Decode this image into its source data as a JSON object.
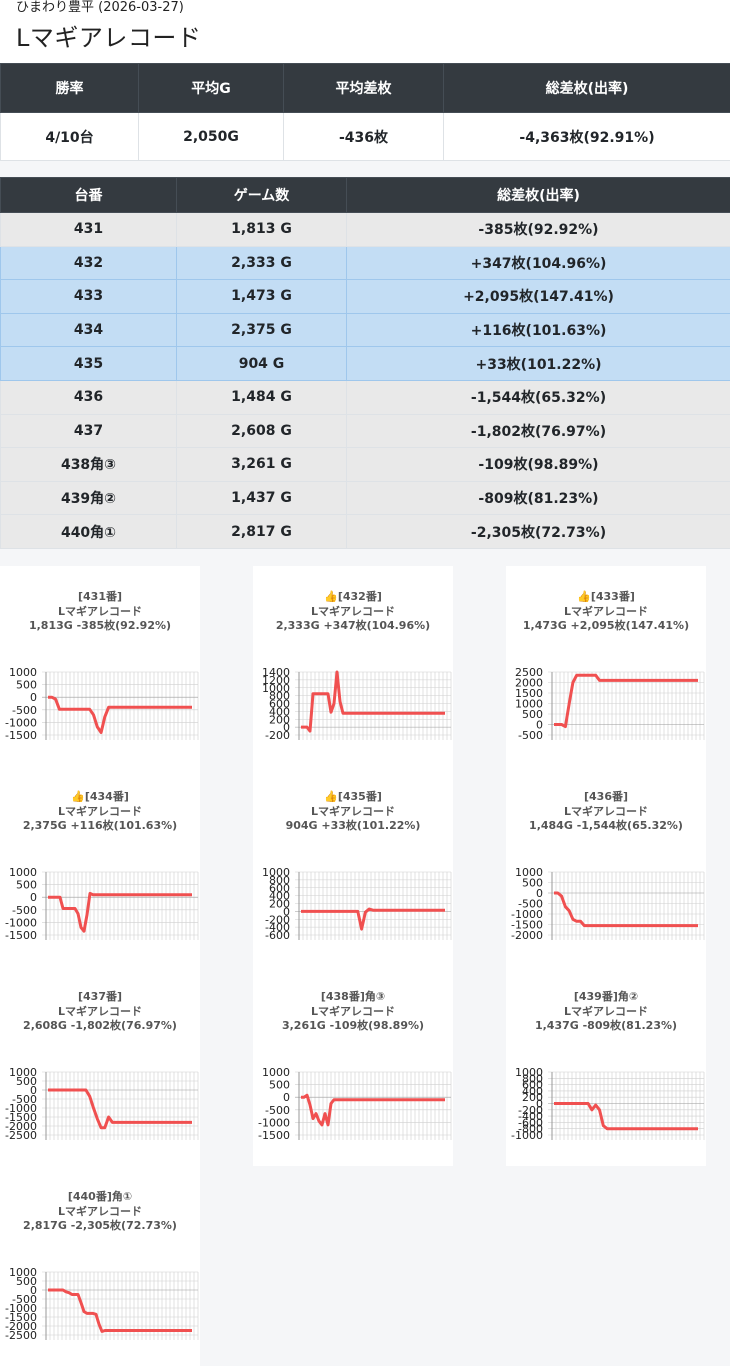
{
  "header": {
    "store_line": "ひまわり豊平 (2026-03-27)",
    "machine_title": "Lマギアレコード"
  },
  "summary": {
    "headers": [
      "勝率",
      "平均G",
      "平均差枚",
      "総差枚(出率)"
    ],
    "values": [
      "4/10台",
      "2,050G",
      "-436枚",
      "-4,363枚(92.91%)"
    ]
  },
  "units_table": {
    "headers": [
      "台番",
      "ゲーム数",
      "総差枚(出率)"
    ],
    "rows": [
      {
        "unit": "431",
        "games": "1,813 G",
        "diff": "-385枚(92.92%)",
        "win": false
      },
      {
        "unit": "432",
        "games": "2,333 G",
        "diff": "+347枚(104.96%)",
        "win": true
      },
      {
        "unit": "433",
        "games": "1,473 G",
        "diff": "+2,095枚(147.41%)",
        "win": true
      },
      {
        "unit": "434",
        "games": "2,375 G",
        "diff": "+116枚(101.63%)",
        "win": true
      },
      {
        "unit": "435",
        "games": "904 G",
        "diff": "+33枚(101.22%)",
        "win": true
      },
      {
        "unit": "436",
        "games": "1,484 G",
        "diff": "-1,544枚(65.32%)",
        "win": false
      },
      {
        "unit": "437",
        "games": "2,608 G",
        "diff": "-1,802枚(76.97%)",
        "win": false
      },
      {
        "unit": "438角③",
        "games": "3,261 G",
        "diff": "-109枚(98.89%)",
        "win": false
      },
      {
        "unit": "439角②",
        "games": "1,437 G",
        "diff": "-809枚(81.23%)",
        "win": false
      },
      {
        "unit": "440角①",
        "games": "2,817 G",
        "diff": "-2,305枚(72.73%)",
        "win": false
      }
    ]
  },
  "colors": {
    "header_bg": "#343a40",
    "win_row": "#c3ddf4",
    "lose_row": "#e9e9e9",
    "line": "#f05050",
    "grid": "#cfcfcf"
  },
  "chart_data": [
    {
      "type": "line",
      "title_line1": "[431番]",
      "title_line2": "Lマギアレコード",
      "title_line3": "1,813G -385枚(92.92%)",
      "ylim": [
        -1500,
        1000
      ],
      "yticks": [
        1000,
        500,
        0,
        -500,
        -1000,
        -1500
      ],
      "x": [
        0,
        10,
        20,
        30,
        40,
        50,
        60,
        70,
        80,
        90,
        100,
        110,
        120,
        130,
        140,
        150,
        160,
        170,
        180,
        190,
        200,
        210,
        220,
        230,
        240,
        250,
        260,
        270,
        280,
        290,
        300,
        310,
        320,
        330,
        340,
        350,
        360,
        370,
        380
      ],
      "values": [
        0,
        0,
        -80,
        -480,
        -480,
        -480,
        -480,
        -480,
        -480,
        -480,
        -480,
        -480,
        -700,
        -1180,
        -1400,
        -780,
        -400,
        -400,
        -400,
        -400,
        -400,
        -400,
        -400,
        -400,
        -400,
        -400,
        -400,
        -400,
        -400,
        -400,
        -400,
        -400,
        -400,
        -400,
        -400,
        -400,
        -400,
        -400,
        -400
      ]
    },
    {
      "type": "line",
      "title_line1": "👍[432番]",
      "title_line2": "Lマギアレコード",
      "title_line3": "2,333G +347枚(104.96%)",
      "ylim": [
        -200,
        1400
      ],
      "yticks": [
        1400,
        1200,
        1000,
        800,
        600,
        400,
        200,
        0,
        -200
      ],
      "x": [
        0,
        8,
        16,
        24,
        32,
        40,
        48,
        56,
        64,
        72,
        80,
        88,
        96,
        104,
        112,
        120,
        128,
        136,
        144,
        152,
        160,
        168,
        176,
        184,
        192,
        200,
        208,
        216,
        224,
        232,
        240,
        248,
        256,
        264,
        272,
        280,
        288,
        296,
        304,
        312,
        320,
        328,
        336,
        344,
        352,
        360,
        368,
        376,
        384
      ],
      "values": [
        0,
        0,
        0,
        -100,
        850,
        850,
        850,
        850,
        850,
        850,
        380,
        600,
        1400,
        650,
        350,
        350,
        350,
        350,
        350,
        350,
        350,
        350,
        350,
        350,
        350,
        350,
        350,
        350,
        350,
        350,
        350,
        350,
        350,
        350,
        350,
        350,
        350,
        350,
        350,
        350,
        350,
        350,
        350,
        350,
        350,
        350,
        350,
        350,
        350
      ]
    },
    {
      "type": "line",
      "title_line1": "👍[433番]",
      "title_line2": "Lマギアレコード",
      "title_line3": "1,473G +2,095枚(147.41%)",
      "ylim": [
        -500,
        2500
      ],
      "yticks": [
        2500,
        2000,
        1500,
        1000,
        500,
        0,
        -500
      ],
      "x": [
        0,
        10,
        20,
        30,
        40,
        50,
        60,
        70,
        80,
        90,
        100,
        110,
        120,
        130,
        140,
        150,
        160,
        170,
        180,
        190,
        200,
        210,
        220,
        230,
        240,
        250,
        260,
        270,
        280,
        290,
        300,
        310,
        320,
        330,
        340,
        350,
        360,
        370,
        380
      ],
      "values": [
        0,
        0,
        0,
        -100,
        1000,
        2000,
        2350,
        2350,
        2350,
        2350,
        2350,
        2350,
        2100,
        2100,
        2100,
        2100,
        2100,
        2100,
        2100,
        2100,
        2100,
        2100,
        2100,
        2100,
        2100,
        2100,
        2100,
        2100,
        2100,
        2100,
        2100,
        2100,
        2100,
        2100,
        2100,
        2100,
        2100,
        2100,
        2100
      ]
    },
    {
      "type": "line",
      "title_line1": "👍[434番]",
      "title_line2": "Lマギアレコード",
      "title_line3": "2,375G +116枚(101.63%)",
      "ylim": [
        -1500,
        1000
      ],
      "yticks": [
        1000,
        500,
        0,
        -500,
        -1000,
        -1500
      ],
      "x": [
        0,
        8,
        16,
        24,
        32,
        40,
        48,
        56,
        64,
        72,
        80,
        88,
        96,
        104,
        112,
        120,
        128,
        136,
        144,
        152,
        160,
        168,
        176,
        184,
        192,
        200,
        208,
        216,
        224,
        232,
        240,
        248,
        256,
        264,
        272,
        280,
        288,
        296,
        304,
        312,
        320,
        328,
        336,
        344,
        352,
        360,
        368,
        376,
        384
      ],
      "values": [
        0,
        0,
        0,
        0,
        0,
        -450,
        -450,
        -450,
        -450,
        -450,
        -650,
        -1200,
        -1350,
        -700,
        150,
        100,
        100,
        100,
        100,
        100,
        100,
        100,
        100,
        100,
        100,
        100,
        100,
        100,
        100,
        100,
        100,
        100,
        100,
        100,
        100,
        100,
        100,
        100,
        100,
        100,
        100,
        100,
        100,
        100,
        100,
        100,
        100,
        100,
        100
      ]
    },
    {
      "type": "line",
      "title_line1": "👍[435番]",
      "title_line2": "Lマギアレコード",
      "title_line3": "904G +33枚(101.22%)",
      "ylim": [
        -600,
        1000
      ],
      "yticks": [
        1000,
        800,
        600,
        400,
        200,
        0,
        -200,
        -400,
        -600
      ],
      "x": [
        0,
        10,
        20,
        30,
        40,
        50,
        60,
        70,
        80,
        90,
        100,
        110,
        120,
        130,
        140,
        150,
        160,
        170,
        180,
        190,
        200,
        210,
        220,
        230,
        240,
        250,
        260,
        270,
        280,
        290,
        300,
        310,
        320,
        330,
        340,
        350,
        360,
        370,
        380
      ],
      "values": [
        0,
        0,
        0,
        0,
        0,
        0,
        0,
        0,
        0,
        0,
        0,
        0,
        0,
        0,
        0,
        0,
        -450,
        -20,
        60,
        30,
        30,
        30,
        30,
        30,
        30,
        30,
        30,
        30,
        30,
        30,
        30,
        30,
        30,
        30,
        30,
        30,
        30,
        30,
        30
      ]
    },
    {
      "type": "line",
      "title_line1": "[436番]",
      "title_line2": "Lマギアレコード",
      "title_line3": "1,484G -1,544枚(65.32%)",
      "ylim": [
        -2000,
        1000
      ],
      "yticks": [
        1000,
        500,
        0,
        -500,
        -1000,
        -1500,
        -2000
      ],
      "x": [
        0,
        10,
        20,
        30,
        40,
        50,
        60,
        70,
        80,
        90,
        100,
        110,
        120,
        130,
        140,
        150,
        160,
        170,
        180,
        190,
        200,
        210,
        220,
        230,
        240,
        250,
        260,
        270,
        280,
        290,
        300,
        310,
        320,
        330,
        340,
        350,
        360,
        370,
        380
      ],
      "values": [
        0,
        0,
        -150,
        -650,
        -850,
        -1250,
        -1350,
        -1350,
        -1550,
        -1550,
        -1550,
        -1550,
        -1550,
        -1550,
        -1550,
        -1550,
        -1550,
        -1550,
        -1550,
        -1550,
        -1550,
        -1550,
        -1550,
        -1550,
        -1550,
        -1550,
        -1550,
        -1550,
        -1550,
        -1550,
        -1550,
        -1550,
        -1550,
        -1550,
        -1550,
        -1550,
        -1550,
        -1550,
        -1550
      ]
    },
    {
      "type": "line",
      "title_line1": "[437番]",
      "title_line2": "Lマギアレコード",
      "title_line3": "2,608G -1,802枚(76.97%)",
      "ylim": [
        -2500,
        1000
      ],
      "yticks": [
        1000,
        500,
        0,
        -500,
        -1000,
        -1500,
        -2000,
        -2500
      ],
      "x": [
        0,
        10,
        20,
        30,
        40,
        50,
        60,
        70,
        80,
        90,
        100,
        110,
        120,
        130,
        140,
        150,
        160,
        170,
        180,
        190,
        200,
        210,
        220,
        230,
        240,
        250,
        260,
        270,
        280,
        290,
        300,
        310,
        320,
        330,
        340,
        350,
        360,
        370,
        380
      ],
      "values": [
        0,
        0,
        0,
        0,
        0,
        0,
        0,
        0,
        0,
        0,
        0,
        -350,
        -1000,
        -1600,
        -2100,
        -2100,
        -1500,
        -1800,
        -1800,
        -1800,
        -1800,
        -1800,
        -1800,
        -1800,
        -1800,
        -1800,
        -1800,
        -1800,
        -1800,
        -1800,
        -1800,
        -1800,
        -1800,
        -1800,
        -1800,
        -1800,
        -1800,
        -1800,
        -1800
      ]
    },
    {
      "type": "line",
      "title_line1": "[438番]角③",
      "title_line2": "Lマギアレコード",
      "title_line3": "3,261G -109枚(98.89%)",
      "ylim": [
        -1500,
        1000
      ],
      "yticks": [
        1000,
        500,
        0,
        -500,
        -1000,
        -1500
      ],
      "x": [
        0,
        8,
        16,
        24,
        32,
        40,
        48,
        56,
        64,
        72,
        80,
        88,
        96,
        104,
        112,
        120,
        128,
        136,
        144,
        152,
        160,
        168,
        176,
        184,
        192,
        200,
        208,
        216,
        224,
        232,
        240,
        248,
        256,
        264,
        272,
        280,
        288,
        296,
        304,
        312,
        320,
        328,
        336,
        344,
        352,
        360,
        368,
        376,
        384
      ],
      "values": [
        0,
        0,
        80,
        -300,
        -850,
        -650,
        -950,
        -1100,
        -650,
        -1100,
        -250,
        -100,
        -100,
        -100,
        -100,
        -100,
        -100,
        -100,
        -100,
        -100,
        -100,
        -100,
        -100,
        -100,
        -100,
        -100,
        -100,
        -100,
        -100,
        -100,
        -100,
        -100,
        -100,
        -100,
        -100,
        -100,
        -100,
        -100,
        -100,
        -100,
        -100,
        -100,
        -100,
        -100,
        -100,
        -100,
        -100,
        -100,
        -100
      ]
    },
    {
      "type": "line",
      "title_line1": "[439番]角②",
      "title_line2": "Lマギアレコード",
      "title_line3": "1,437G -809枚(81.23%)",
      "ylim": [
        -1000,
        1000
      ],
      "yticks": [
        1000,
        800,
        600,
        400,
        200,
        0,
        -200,
        -400,
        -600,
        -800,
        -1000
      ],
      "x": [
        0,
        10,
        20,
        30,
        40,
        50,
        60,
        70,
        80,
        90,
        100,
        110,
        120,
        130,
        140,
        150,
        160,
        170,
        180,
        190,
        200,
        210,
        220,
        230,
        240,
        250,
        260,
        270,
        280,
        290,
        300,
        310,
        320,
        330,
        340,
        350,
        360,
        370,
        380
      ],
      "values": [
        0,
        0,
        0,
        0,
        0,
        0,
        0,
        0,
        0,
        0,
        -200,
        -50,
        -200,
        -700,
        -800,
        -800,
        -800,
        -800,
        -800,
        -800,
        -800,
        -800,
        -800,
        -800,
        -800,
        -800,
        -800,
        -800,
        -800,
        -800,
        -800,
        -800,
        -800,
        -800,
        -800,
        -800,
        -800,
        -800,
        -800
      ]
    },
    {
      "type": "line",
      "title_line1": "[440番]角①",
      "title_line2": "Lマギアレコード",
      "title_line3": "2,817G -2,305枚(72.73%)",
      "ylim": [
        -2500,
        1000
      ],
      "yticks": [
        1000,
        500,
        0,
        -500,
        -1000,
        -1500,
        -2000,
        -2500
      ],
      "x": [
        0,
        8,
        16,
        24,
        32,
        40,
        48,
        56,
        64,
        72,
        80,
        88,
        96,
        104,
        112,
        120,
        128,
        136,
        144,
        152,
        160,
        168,
        176,
        184,
        192,
        200,
        208,
        216,
        224,
        232,
        240,
        248,
        256,
        264,
        272,
        280,
        288,
        296,
        304,
        312,
        320,
        328,
        336,
        344,
        352,
        360,
        368,
        376,
        384
      ],
      "values": [
        0,
        0,
        0,
        0,
        0,
        0,
        -100,
        -150,
        -250,
        -250,
        -250,
        -700,
        -1200,
        -1300,
        -1300,
        -1300,
        -1350,
        -1900,
        -2300,
        -2250,
        -2250,
        -2250,
        -2250,
        -2250,
        -2250,
        -2250,
        -2250,
        -2250,
        -2250,
        -2250,
        -2250,
        -2250,
        -2250,
        -2250,
        -2250,
        -2250,
        -2250,
        -2250,
        -2250,
        -2250,
        -2250,
        -2250,
        -2250,
        -2250,
        -2250,
        -2250,
        -2250,
        -2250,
        -2250
      ]
    }
  ]
}
